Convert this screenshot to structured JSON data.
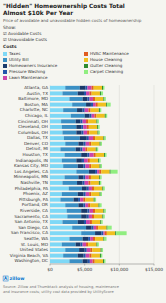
{
  "chart_data": {
    "type": "bar",
    "orientation": "horizontal",
    "stacked": true,
    "grid": true,
    "title": "\"Hidden\" Homeownership Costs Total\nAlmost $10k Per Year",
    "subtitle": "Price of avoidable and unavoidable hidden costs of homeownership",
    "annotations": [
      "Show:",
      "☑ Avoidable Costs",
      "☑ Unavoidable Costs",
      "Costs",
      "🄰 zillow",
      "Source: Zillow and Thumbtack analysis of housing, maintenance\nand insurance costs; utility cost data provided by UtilityScore"
    ],
    "categories": [
      "Atlanta, GA",
      "Austin, TX",
      "Baltimore, MD",
      "Boston, MA",
      "Charlotte, NC",
      "Chicago, IL",
      "Cincinnati, OH",
      "Cleveland, OH",
      "Columbus, OH",
      "Dallas, TX",
      "Denver, CO",
      "Detroit, MI",
      "Houston, TX",
      "Indianapolis, IN",
      "Kansas City, MO",
      "Los Angeles, CA",
      "Minneapolis, MN",
      "Nashville, TN",
      "Philadelphia, PA",
      "Phoenix, AZ",
      "Pittsburgh, PA",
      "Portland, OR",
      "Riverside, CA",
      "Sacramento, CA",
      "San Antonio, TX",
      "San Diego, CA",
      "San Francisco, CA",
      "Seattle, WA",
      "St. Louis, MO",
      "United States",
      "Virginia Beach, VA",
      "Washington, DC"
    ],
    "series": [
      {
        "name": "Taxes",
        "color": "#7ed8f6",
        "values": [
          2200,
          1800,
          2800,
          3200,
          1900,
          3000,
          1600,
          1700,
          1800,
          2000,
          2200,
          1500,
          2100,
          1700,
          1900,
          3800,
          2100,
          1800,
          2700,
          1700,
          1500,
          2200,
          2400,
          2500,
          1800,
          3200,
          4500,
          2800,
          1700,
          2200,
          1900,
          2800
        ]
      },
      {
        "name": "Utility Bill",
        "color": "#3a8fc4",
        "values": [
          2100,
          2200,
          1900,
          2000,
          2000,
          2000,
          2100,
          2100,
          2000,
          2300,
          1900,
          2200,
          2400,
          2100,
          2100,
          1800,
          2000,
          2100,
          1900,
          2300,
          1900,
          1900,
          2100,
          2000,
          2200,
          2000,
          2000,
          1900,
          2000,
          2000,
          2100,
          1900
        ]
      },
      {
        "name": "Homeowners Insurance",
        "color": "#1a3a6b",
        "values": [
          800,
          900,
          700,
          700,
          800,
          700,
          700,
          700,
          750,
          1000,
          750,
          700,
          900,
          800,
          800,
          900,
          700,
          800,
          700,
          850,
          650,
          700,
          900,
          800,
          900,
          800,
          900,
          800,
          700,
          800,
          850,
          750
        ]
      },
      {
        "name": "Pressure Washing",
        "color": "#2255aa",
        "values": [
          300,
          300,
          300,
          300,
          300,
          300,
          300,
          300,
          300,
          300,
          300,
          300,
          300,
          300,
          300,
          300,
          300,
          300,
          300,
          300,
          300,
          300,
          300,
          300,
          300,
          300,
          300,
          300,
          300,
          300,
          300,
          300
        ]
      },
      {
        "name": "Lawn Maintenance",
        "color": "#cc44aa",
        "values": [
          600,
          500,
          500,
          400,
          550,
          400,
          500,
          500,
          500,
          600,
          500,
          400,
          600,
          550,
          550,
          300,
          500,
          550,
          450,
          500,
          450,
          400,
          500,
          450,
          550,
          350,
          200,
          400,
          500,
          500,
          550,
          400
        ]
      },
      {
        "name": "HVAC Maintenance",
        "color": "#e05c20",
        "values": [
          300,
          300,
          300,
          300,
          300,
          300,
          300,
          300,
          300,
          300,
          300,
          300,
          300,
          300,
          300,
          300,
          300,
          300,
          300,
          300,
          300,
          300,
          300,
          300,
          300,
          300,
          300,
          300,
          300,
          300,
          300,
          300
        ]
      },
      {
        "name": "House Cleaning",
        "color": "#f0c020",
        "values": [
          1200,
          1200,
          1200,
          1200,
          1200,
          1200,
          1200,
          1200,
          1200,
          1200,
          1200,
          1200,
          1200,
          1200,
          1200,
          1200,
          1200,
          1200,
          1200,
          1200,
          1200,
          1200,
          1200,
          1200,
          1200,
          1200,
          1200,
          1200,
          1200,
          1200,
          1200,
          1200
        ]
      },
      {
        "name": "Gutter Cleaning",
        "color": "#2e8b30",
        "values": [
          150,
          150,
          150,
          150,
          150,
          150,
          150,
          150,
          150,
          150,
          150,
          150,
          150,
          150,
          150,
          150,
          150,
          150,
          150,
          150,
          150,
          150,
          150,
          150,
          150,
          150,
          150,
          150,
          150,
          150,
          150,
          150
        ]
      },
      {
        "name": "Carpet Cleaning",
        "color": "#90ee80",
        "values": [
          200,
          300,
          200,
          500,
          200,
          200,
          200,
          200,
          200,
          200,
          200,
          200,
          200,
          200,
          200,
          1000,
          200,
          200,
          200,
          200,
          200,
          300,
          200,
          200,
          200,
          600,
          1500,
          300,
          200,
          200,
          200,
          200
        ]
      }
    ],
    "xlim": [
      0,
      15000
    ],
    "xticks": [
      {
        "value": 0,
        "label": "$0"
      },
      {
        "value": 5000,
        "label": "$5,000"
      },
      {
        "value": 10000,
        "label": "$10,000"
      },
      {
        "value": 15000,
        "label": "$15,000"
      }
    ]
  }
}
